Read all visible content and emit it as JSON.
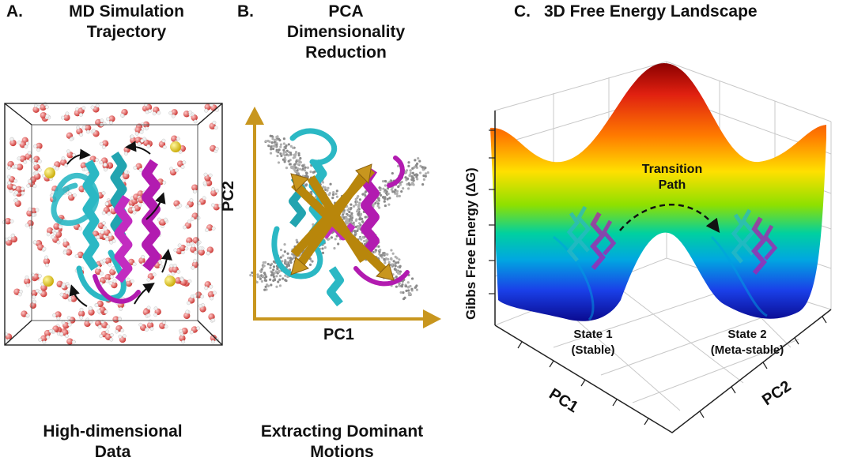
{
  "panel_a": {
    "letter": "A.",
    "title_line1": "MD Simulation",
    "title_line2": "Trajectory",
    "caption_line1": "High-dimensional",
    "caption_line2": "Data"
  },
  "panel_b": {
    "letter": "B.",
    "title_line1": "PCA",
    "title_line2": "Dimensionality",
    "title_line3": "Reduction",
    "x_axis_label": "PC1",
    "y_axis_label": "PC2",
    "caption_line1": "Extracting Dominant",
    "caption_line2": "Motions"
  },
  "panel_c": {
    "letter": "C.",
    "title": "3D Free Energy Landscape",
    "z_axis_label": "Gibbs Free Energy (ΔG)",
    "x_axis_label": "PC1",
    "y_axis_label": "PC2",
    "path_label_line1": "Transition",
    "path_label_line2": "Path",
    "state1_line1": "State 1",
    "state1_line2": "(Stable)",
    "state2_line1": "State 2",
    "state2_line2": "(Meta-stable)"
  },
  "colors": {
    "protein_cyan": "#2bb8c4",
    "protein_magenta": "#b21bb0",
    "pc_axis_gold": "#c8961e",
    "water_red": "#d9534f",
    "ion_yellow": "#e8d21c"
  }
}
